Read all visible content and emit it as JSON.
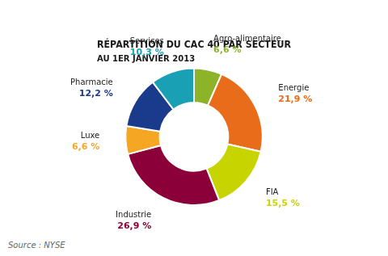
{
  "chart_data": {
    "type": "doughnut",
    "title": "RÉPARTITION DU CAC 40 PAR SECTEUR",
    "subtitle": "AU 1ER JANVIER 2013",
    "categories": [
      "Agro-alimentaire",
      "Energie",
      "FIA",
      "Industrie",
      "Luxe",
      "Pharmacie",
      "Services"
    ],
    "values": [
      6.6,
      21.9,
      15.5,
      26.9,
      6.6,
      12.2,
      10.3
    ],
    "value_labels": [
      "6,6 %",
      "21,9 %",
      "15,5 %",
      "26,9 %",
      "6,6 %",
      "12,2 %",
      "10,3 %"
    ],
    "colors": [
      "#8db428",
      "#e86c1a",
      "#c8d400",
      "#8b0039",
      "#f5a623",
      "#1a3a8c",
      "#1aa0b4"
    ],
    "data_labels": true,
    "annotations": [
      "Source : NYSE"
    ]
  }
}
